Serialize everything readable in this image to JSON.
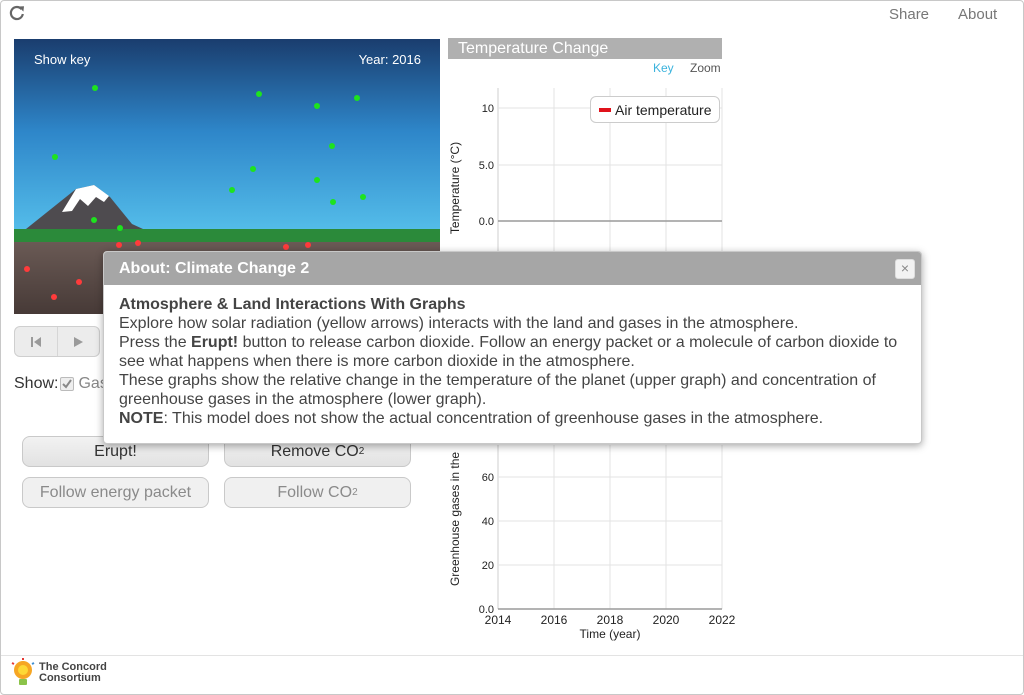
{
  "topbar": {
    "share_label": "Share",
    "about_label": "About",
    "reload_icon": "reload-icon"
  },
  "sim": {
    "show_key_label": "Show key",
    "year_label": "Year: 2016"
  },
  "controls": {
    "show_label": "Show:",
    "checkbox_label": "Gas",
    "checkbox_checked": true,
    "erupt_label": "Erupt!",
    "remove_label": "Remove CO",
    "remove_sub": "2",
    "follow_energy_label": "Follow energy packet",
    "follow_co2_label": "Follow CO",
    "follow_co2_sub": "2"
  },
  "graph": {
    "title": "Temperature Change",
    "key_label": "Key",
    "zoom_label": "Zoom",
    "legend_label": "Air temperature",
    "colors": {
      "air_temperature": "#e0121b",
      "key_link": "#3bb3dd"
    }
  },
  "chart_data": [
    {
      "type": "line",
      "ylabel": "Temperature (°C)",
      "y_ticks": [
        "10",
        "5.0",
        "0.0"
      ],
      "ylim_visible": [
        0,
        10
      ],
      "series": [
        {
          "name": "Air temperature",
          "values": []
        }
      ]
    },
    {
      "type": "line",
      "xlabel": "Time (year)",
      "ylabel": "Greenhouse gases in the",
      "x_ticks": [
        "2014",
        "2016",
        "2018",
        "2020",
        "2022"
      ],
      "y_ticks": [
        "60",
        "40",
        "20",
        "0.0"
      ],
      "xlim": [
        2014,
        2022
      ],
      "series": []
    }
  ],
  "footer": {
    "logo_line1": "The Concord",
    "logo_line2": "Consortium"
  },
  "dialog": {
    "header": "About: Climate Change 2",
    "close_label": "×",
    "title": "Atmosphere & Land Interactions With Graphs",
    "p1": "Explore how solar radiation (yellow arrows) interacts with the land and gases in the atmosphere.",
    "p2_prefix": "Press the ",
    "p2_bold": "Erupt!",
    "p2_suffix": " button to release carbon dioxide. Follow an energy packet or a molecule of carbon dioxide to see what happens when there is more carbon dioxide in the atmosphere.",
    "p3": "These graphs show the relative change in the temperature of the planet (upper graph) and concentration of greenhouse gases in the atmosphere (lower graph).",
    "note_bold": "NOTE",
    "note_text": ": This model does not show the actual concentration of greenhouse gases in the atmosphere."
  }
}
